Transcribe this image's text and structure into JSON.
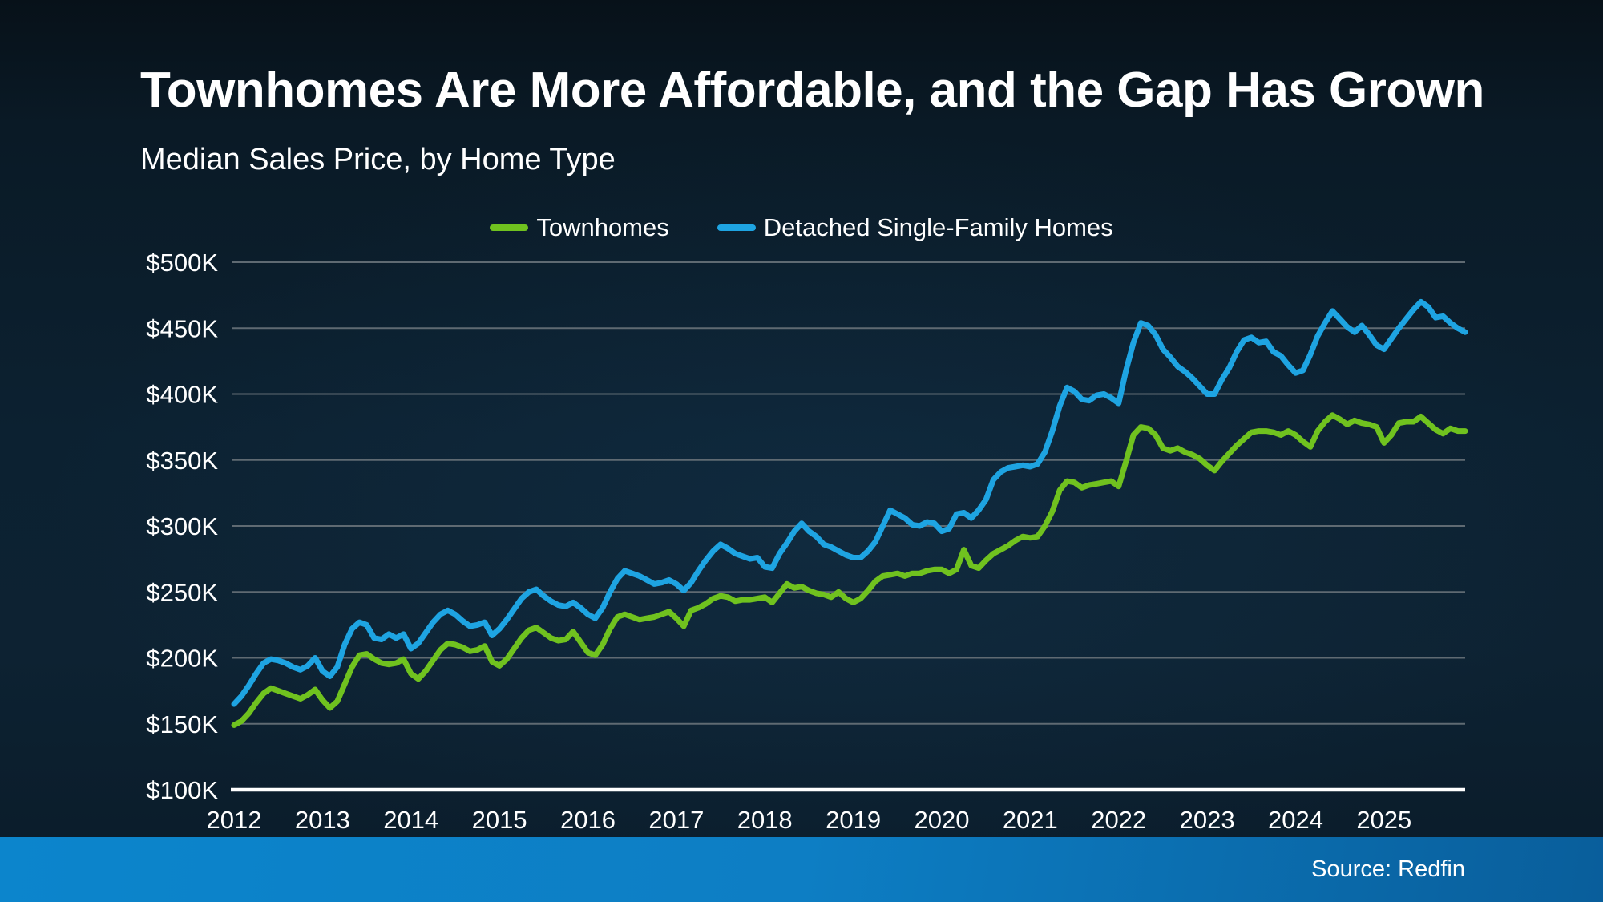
{
  "header": {
    "title": "Townhomes Are More Affordable, and the Gap Has Grown",
    "subtitle": "Median Sales Price, by Home Type"
  },
  "footer": {
    "source": "Source: Redfin"
  },
  "colors": {
    "background": "#0c2131",
    "accent_footer_left": "#0c85cc",
    "accent_footer_right": "#095e9b",
    "gridline": "#5f6a72",
    "axis_line": "#ffffff",
    "text": "#ffffff",
    "townhomes_green": "#70c21f",
    "detached_blue": "#1ea4e2"
  },
  "chart_data": {
    "type": "line",
    "title": "Townhomes Are More Affordable, and the Gap Has Grown",
    "subtitle": "Median Sales Price, by Home Type",
    "unit": "USD thousands",
    "x_start_label": "2012",
    "x_end_label": "2025",
    "x_frequency": "monthly, Jan 2012 - Dec 2025",
    "x_tick_labels": [
      "2012",
      "2013",
      "2014",
      "2015",
      "2016",
      "2017",
      "2018",
      "2019",
      "2020",
      "2021",
      "2022",
      "2023",
      "2024",
      "2025"
    ],
    "y_tick_labels": [
      "$500K",
      "$450K",
      "$400K",
      "$350K",
      "$300K",
      "$250K",
      "$200K",
      "$150K",
      "$100K"
    ],
    "y_tick_values": [
      500,
      450,
      400,
      350,
      300,
      250,
      200,
      150,
      100
    ],
    "ylim": [
      100,
      500
    ],
    "grid": true,
    "grid_color": "#5f6a72",
    "legend_position": "top",
    "series": [
      {
        "name": "Townhomes",
        "color": "#70c21f",
        "values": [
          149,
          152,
          158,
          166,
          173,
          177,
          175,
          173,
          171,
          169,
          172,
          176,
          168,
          162,
          167,
          180,
          193,
          202,
          203,
          199,
          196,
          195,
          196,
          199,
          188,
          184,
          190,
          198,
          206,
          211,
          210,
          208,
          205,
          206,
          209,
          197,
          194,
          199,
          207,
          215,
          221,
          223,
          219,
          215,
          213,
          214,
          220,
          212,
          204,
          202,
          210,
          222,
          231,
          233,
          231,
          229,
          230,
          231,
          233,
          235,
          230,
          224,
          236,
          238,
          241,
          245,
          247,
          246,
          243,
          244,
          244,
          245,
          246,
          242,
          249,
          256,
          253,
          254,
          251,
          249,
          248,
          246,
          250,
          245,
          242,
          245,
          251,
          258,
          262,
          263,
          264,
          262,
          264,
          264,
          266,
          267,
          267,
          264,
          267,
          282,
          270,
          268,
          274,
          279,
          282,
          285,
          289,
          292,
          291,
          292,
          300,
          311,
          327,
          334,
          333,
          329,
          331,
          332,
          333,
          334,
          330,
          349,
          369,
          375,
          374,
          369,
          359,
          357,
          359,
          356,
          354,
          351,
          346,
          342,
          349,
          355,
          361,
          366,
          371,
          372,
          372,
          371,
          369,
          372,
          369,
          364,
          360,
          372,
          379,
          384,
          381,
          377,
          380,
          378,
          377,
          375,
          363,
          369,
          378,
          379,
          379,
          383,
          378,
          373,
          370,
          374,
          372,
          372
        ]
      },
      {
        "name": "Detached Single-Family Homes",
        "color": "#1ea4e2",
        "values": [
          165,
          171,
          179,
          188,
          196,
          199,
          198,
          196,
          193,
          191,
          194,
          200,
          190,
          186,
          193,
          210,
          222,
          227,
          225,
          215,
          214,
          218,
          215,
          218,
          207,
          211,
          219,
          227,
          233,
          236,
          233,
          228,
          224,
          225,
          227,
          217,
          222,
          229,
          237,
          245,
          250,
          252,
          247,
          243,
          240,
          239,
          242,
          238,
          233,
          230,
          238,
          250,
          260,
          266,
          264,
          262,
          259,
          256,
          257,
          259,
          256,
          251,
          257,
          266,
          274,
          281,
          286,
          283,
          279,
          277,
          275,
          276,
          269,
          268,
          279,
          287,
          296,
          302,
          296,
          292,
          286,
          284,
          281,
          278,
          276,
          276,
          281,
          288,
          300,
          312,
          309,
          306,
          301,
          300,
          303,
          302,
          296,
          298,
          309,
          310,
          306,
          312,
          320,
          335,
          341,
          344,
          345,
          346,
          345,
          347,
          356,
          372,
          391,
          405,
          402,
          396,
          395,
          399,
          400,
          397,
          393,
          418,
          439,
          454,
          452,
          445,
          434,
          428,
          421,
          417,
          412,
          406,
          400,
          400,
          411,
          420,
          432,
          441,
          443,
          439,
          440,
          432,
          429,
          422,
          416,
          418,
          430,
          444,
          454,
          463,
          457,
          451,
          447,
          452,
          445,
          437,
          434,
          442,
          450,
          457,
          464,
          470,
          466,
          458,
          459,
          454,
          450,
          447
        ]
      }
    ]
  }
}
